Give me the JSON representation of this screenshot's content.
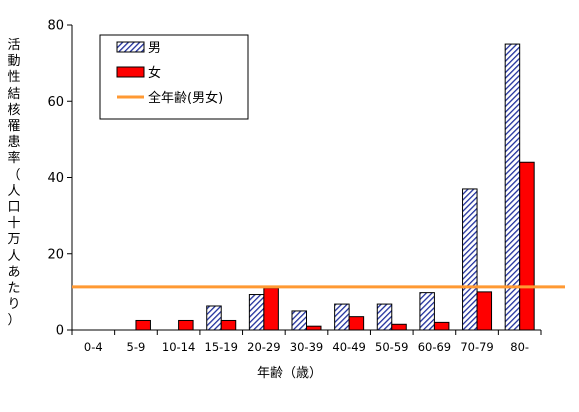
{
  "chart_data": {
    "type": "bar",
    "categories": [
      "0-4",
      "5-9",
      "10-14",
      "15-19",
      "20-29",
      "30-39",
      "40-49",
      "50-59",
      "60-69",
      "70-79",
      "80-"
    ],
    "series": [
      {
        "name": "男",
        "values": [
          0,
          0,
          0,
          6.3,
          9.3,
          5.0,
          6.8,
          6.8,
          9.8,
          37.0,
          75.0
        ],
        "color": "#1f2f9c",
        "pattern": "hatched"
      },
      {
        "name": "女",
        "values": [
          0,
          2.5,
          2.5,
          2.5,
          11.0,
          1.0,
          3.5,
          1.5,
          2.0,
          10.0,
          44.0
        ],
        "color": "#ff0000"
      }
    ],
    "reference_line": {
      "name": "全年齢(男女)",
      "value": 11.3,
      "color": "#ff9933"
    },
    "xlabel": "年齢（歳）",
    "ylabel": "活動性結核罹患率（人口十万人あたり）",
    "ylim": [
      0,
      80
    ],
    "yticks": [
      0,
      20,
      40,
      60,
      80
    ],
    "legend_position": "top-left",
    "grid": false
  }
}
